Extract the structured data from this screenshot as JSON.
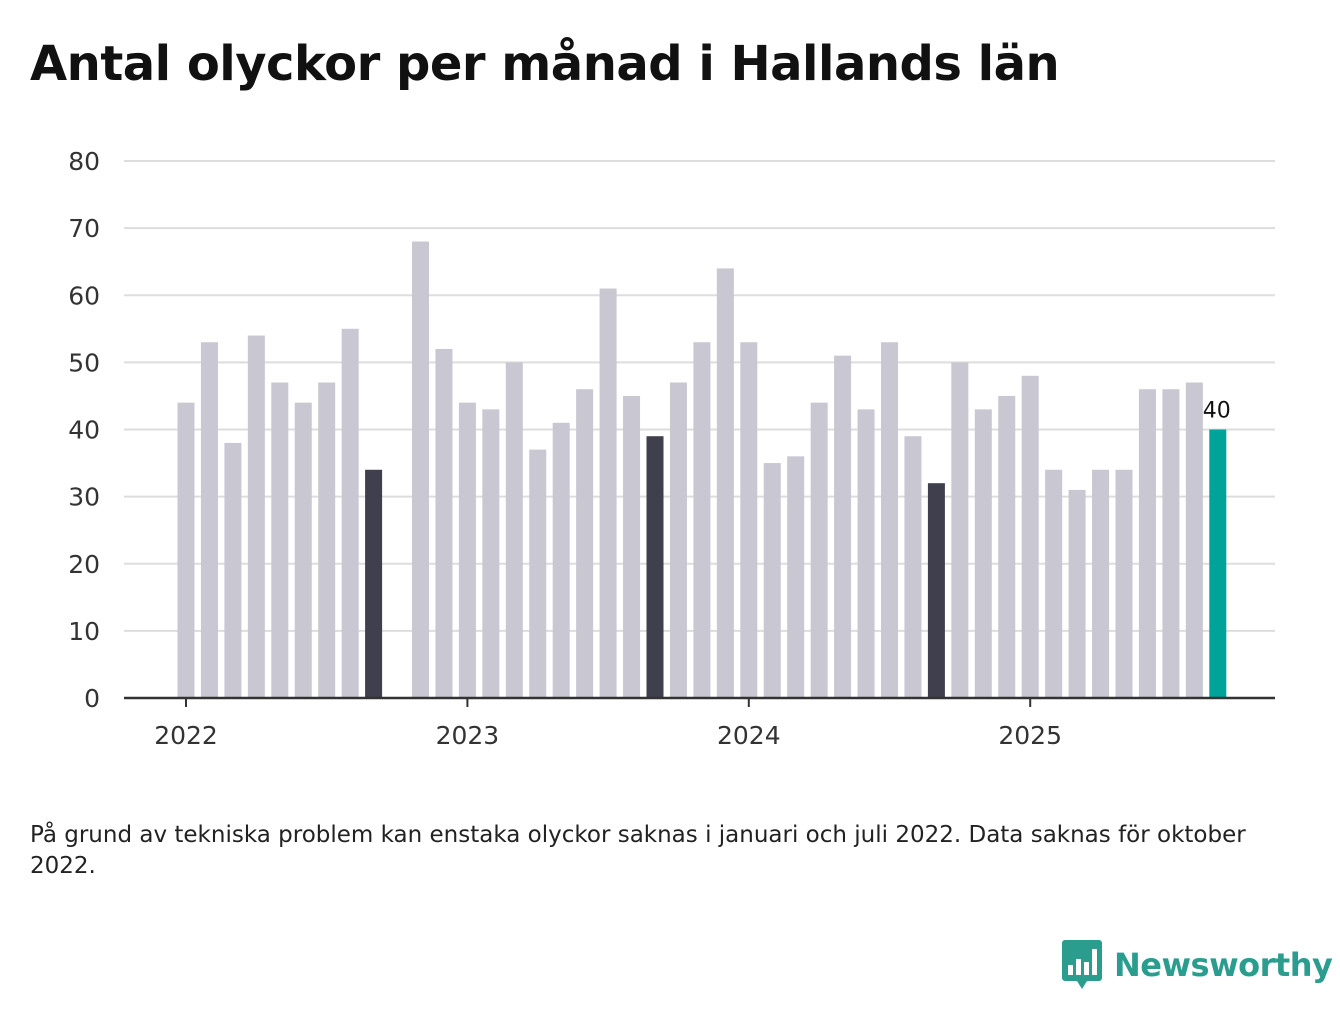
{
  "title": "Antal olyckor per månad i Hallands län",
  "note": "På grund av tekniska problem kan enstaka olyckor saknas i januari och juli 2022. Data saknas för oktober 2022.",
  "brand": {
    "name": "Newsworthy",
    "color": "#2a9d8f"
  },
  "colors": {
    "bar_default": "#c8c7d2",
    "bar_september": "#3f3f4d",
    "bar_latest": "#00a39a",
    "grid": "#dddddd",
    "axis": "#333333"
  },
  "chart_data": {
    "type": "bar",
    "title": "Antal olyckor per månad i Hallands län",
    "xlabel": "",
    "ylabel": "",
    "ylim": [
      0,
      80
    ],
    "yticks": [
      0,
      10,
      20,
      30,
      40,
      50,
      60,
      70,
      80
    ],
    "grid": true,
    "x_tick_labels": [
      "2022",
      "2023",
      "2024",
      "2025"
    ],
    "x_tick_positions": [
      "2022-01",
      "2023-01",
      "2024-01",
      "2025-01"
    ],
    "categories": [
      "2022-01",
      "2022-02",
      "2022-03",
      "2022-04",
      "2022-05",
      "2022-06",
      "2022-07",
      "2022-08",
      "2022-09",
      "2022-10",
      "2022-11",
      "2022-12",
      "2023-01",
      "2023-02",
      "2023-03",
      "2023-04",
      "2023-05",
      "2023-06",
      "2023-07",
      "2023-08",
      "2023-09",
      "2023-10",
      "2023-11",
      "2023-12",
      "2024-01",
      "2024-02",
      "2024-03",
      "2024-04",
      "2024-05",
      "2024-06",
      "2024-07",
      "2024-08",
      "2024-09",
      "2024-10",
      "2024-11",
      "2024-12",
      "2025-01",
      "2025-02",
      "2025-03",
      "2025-04",
      "2025-05",
      "2025-06",
      "2025-07",
      "2025-08",
      "2025-09"
    ],
    "values": [
      44,
      53,
      38,
      54,
      47,
      44,
      47,
      55,
      34,
      null,
      68,
      52,
      44,
      43,
      50,
      37,
      41,
      46,
      61,
      45,
      39,
      47,
      53,
      64,
      53,
      35,
      36,
      44,
      51,
      43,
      53,
      39,
      32,
      50,
      43,
      45,
      48,
      34,
      31,
      34,
      34,
      46,
      46,
      47,
      40
    ],
    "highlight": {
      "dark": [
        "2022-09",
        "2023-09",
        "2024-09"
      ],
      "latest": "2025-09"
    },
    "annotations": [
      {
        "category": "2025-09",
        "text": "40"
      }
    ]
  }
}
